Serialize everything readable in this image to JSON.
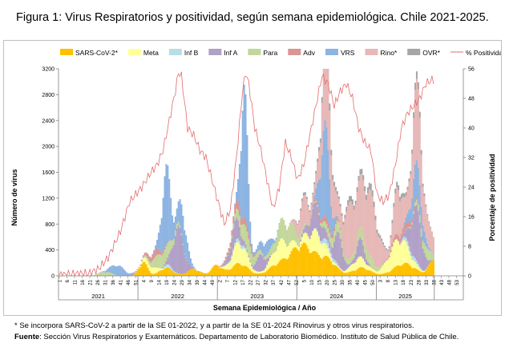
{
  "figure": {
    "title": "Figura 1: Virus Respiratorios y positividad, según semana epidemiológica. Chile 2021-2025.",
    "footnote": "* Se incorpora SARS-CoV-2 a partir de la SE 01-2022, y a partir de la SE 01-2024 Rinovirus y otros virus respiratorios.",
    "source_label": "Fuente",
    "source_text": ": Sección Virus Respiratorios y Exantemáticos. Departamento de Laboratorio Biomédico. Instituto de Salud Pública de Chile."
  },
  "chart_data": {
    "type": "bar",
    "stacked": true,
    "title": "",
    "xlabel": "Semana Epidemiológica / Año",
    "ylabel": "Número de virus",
    "y2label": "Porcentaje de positividad",
    "ylim": [
      0,
      3200
    ],
    "y2lim": [
      0,
      56
    ],
    "yticks": [
      0,
      400,
      800,
      1200,
      1600,
      2000,
      2400,
      2800,
      3200
    ],
    "y2ticks": [
      0,
      8,
      16,
      24,
      32,
      40,
      48,
      56
    ],
    "grid": false,
    "legend_position": "top",
    "years": [
      {
        "label": "2021",
        "weeks": 52
      },
      {
        "label": "2022",
        "weeks": 52
      },
      {
        "label": "2023",
        "weeks": 52
      },
      {
        "label": "2024",
        "weeks": 52
      },
      {
        "label": "2025",
        "weeks": 38
      }
    ],
    "week_tick_labels": [
      "1",
      "6",
      "11",
      "16",
      "21",
      "26",
      "31",
      "36",
      "41",
      "46",
      "51",
      "4",
      "9",
      "14",
      "19",
      "24",
      "29",
      "34",
      "39",
      "44",
      "49",
      "2",
      "7",
      "12",
      "17",
      "22",
      "27",
      "32",
      "37",
      "42",
      "47",
      "52",
      "5",
      "10",
      "15",
      "20",
      "25",
      "30",
      "35",
      "40",
      "45",
      "50",
      "3",
      "8",
      "13",
      "18",
      "23",
      "28",
      "33",
      "38",
      "43",
      "48",
      "53"
    ],
    "series_colors": {
      "SARS-CoV-2*": "#ffc000",
      "Meta": "#ffff99",
      "Inf B": "#b7dee8",
      "Inf A": "#b1a0c7",
      "Para": "#c4d79b",
      "Adv": "#da9694",
      "VRS": "#8db4e2",
      "Rino*": "#e6b8b7",
      "OVR*": "#a6a6a6",
      "% Positividad": "#e46c6c"
    },
    "series": [
      {
        "name": "SARS-CoV-2*",
        "kind": "bar",
        "peaks": [
          [
            4,
            0,
            1
          ],
          [
            55,
            200,
            4
          ],
          [
            70,
            120,
            6
          ],
          [
            88,
            100,
            6
          ],
          [
            103,
            150,
            5
          ],
          [
            118,
            180,
            8
          ],
          [
            142,
            120,
            8
          ],
          [
            159,
            450,
            12
          ],
          [
            176,
            200,
            8
          ],
          [
            198,
            120,
            8
          ],
          [
            226,
            180,
            10
          ],
          [
            246,
            250,
            5
          ]
        ]
      },
      {
        "name": "Meta",
        "kind": "bar",
        "peaks": [
          [
            60,
            100,
            6
          ],
          [
            118,
            300,
            7
          ],
          [
            145,
            280,
            8
          ],
          [
            168,
            300,
            8
          ],
          [
            196,
            150,
            7
          ],
          [
            222,
            380,
            9
          ]
        ]
      },
      {
        "name": "Inf B",
        "kind": "bar",
        "peaks": [
          [
            72,
            40,
            4
          ],
          [
            118,
            60,
            5
          ],
          [
            176,
            80,
            6
          ],
          [
            230,
            70,
            6
          ]
        ]
      },
      {
        "name": "Inf A",
        "kind": "bar",
        "peaks": [
          [
            48,
            20,
            3
          ],
          [
            78,
            650,
            5
          ],
          [
            115,
            300,
            5
          ],
          [
            132,
            250,
            4
          ],
          [
            168,
            350,
            6
          ],
          [
            183,
            450,
            4
          ],
          [
            197,
            250,
            4
          ],
          [
            234,
            750,
            5
          ]
        ]
      },
      {
        "name": "Para",
        "kind": "bar",
        "peaks": [
          [
            30,
            60,
            6
          ],
          [
            68,
            220,
            8
          ],
          [
            122,
            250,
            7
          ],
          [
            148,
            300,
            9
          ],
          [
            180,
            160,
            8
          ],
          [
            200,
            180,
            8
          ],
          [
            240,
            150,
            7
          ]
        ]
      },
      {
        "name": "Adv",
        "kind": "bar",
        "peaks": [
          [
            62,
            100,
            6
          ],
          [
            118,
            120,
            8
          ],
          [
            175,
            80,
            8
          ],
          [
            225,
            100,
            8
          ]
        ]
      },
      {
        "name": "VRS",
        "kind": "bar",
        "peaks": [
          [
            38,
            150,
            6
          ],
          [
            70,
            1100,
            4
          ],
          [
            81,
            450,
            4
          ],
          [
            121,
            1900,
            3
          ],
          [
            135,
            200,
            5
          ],
          [
            174,
            1300,
            4
          ],
          [
            234,
            500,
            5
          ]
        ]
      },
      {
        "name": "Rino*",
        "kind": "bar",
        "peaks": [
          [
            160,
            400,
            5
          ],
          [
            175,
            1200,
            5
          ],
          [
            190,
            700,
            6
          ],
          [
            203,
            900,
            8
          ],
          [
            222,
            700,
            4
          ],
          [
            234,
            1050,
            5
          ],
          [
            245,
            300,
            8
          ]
        ]
      },
      {
        "name": "OVR*",
        "kind": "bar",
        "peaks": [
          [
            160,
            40,
            5
          ],
          [
            175,
            120,
            6
          ],
          [
            190,
            70,
            6
          ],
          [
            203,
            90,
            8
          ],
          [
            222,
            80,
            5
          ],
          [
            234,
            100,
            5
          ]
        ]
      },
      {
        "name": "% Positividad",
        "kind": "line",
        "axis": "right",
        "points": [
          [
            0,
            0.2
          ],
          [
            10,
            0.5
          ],
          [
            20,
            0.7
          ],
          [
            26,
            2
          ],
          [
            32,
            5
          ],
          [
            40,
            12
          ],
          [
            46,
            20
          ],
          [
            54,
            24
          ],
          [
            60,
            28
          ],
          [
            64,
            30
          ],
          [
            68,
            34
          ],
          [
            72,
            42
          ],
          [
            76,
            50
          ],
          [
            78,
            55
          ],
          [
            80,
            54
          ],
          [
            84,
            40
          ],
          [
            88,
            38
          ],
          [
            92,
            34
          ],
          [
            96,
            32
          ],
          [
            100,
            26
          ],
          [
            104,
            20
          ],
          [
            108,
            14
          ],
          [
            112,
            18
          ],
          [
            116,
            32
          ],
          [
            120,
            50
          ],
          [
            122,
            55
          ],
          [
            124,
            52
          ],
          [
            128,
            40
          ],
          [
            132,
            34
          ],
          [
            136,
            26
          ],
          [
            140,
            18
          ],
          [
            144,
            24
          ],
          [
            148,
            36
          ],
          [
            152,
            32
          ],
          [
            156,
            26
          ],
          [
            160,
            30
          ],
          [
            164,
            38
          ],
          [
            168,
            46
          ],
          [
            172,
            54
          ],
          [
            176,
            52
          ],
          [
            180,
            46
          ],
          [
            184,
            50
          ],
          [
            188,
            52
          ],
          [
            192,
            48
          ],
          [
            196,
            40
          ],
          [
            200,
            36
          ],
          [
            204,
            34
          ],
          [
            208,
            22
          ],
          [
            212,
            20
          ],
          [
            216,
            22
          ],
          [
            220,
            30
          ],
          [
            224,
            40
          ],
          [
            228,
            44
          ],
          [
            232,
            46
          ],
          [
            236,
            48
          ],
          [
            240,
            52
          ],
          [
            244,
            53
          ]
        ]
      }
    ]
  }
}
